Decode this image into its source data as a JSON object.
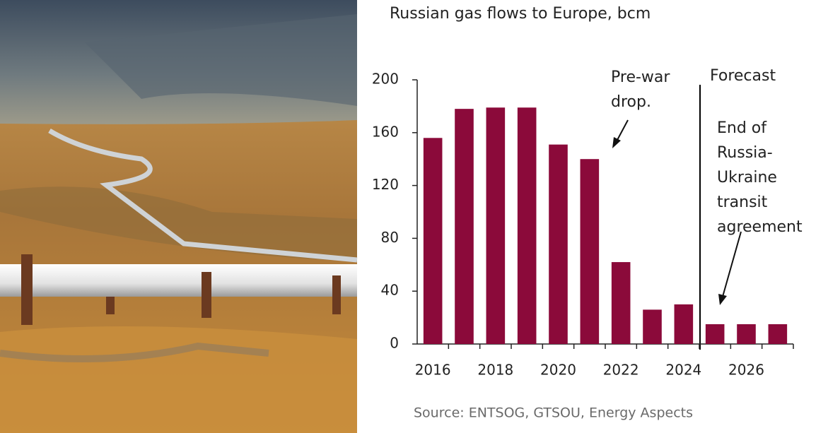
{
  "chart_data": {
    "type": "bar",
    "title": "Russian gas flows to Europe, bcm",
    "categories": [
      "2016",
      null,
      "2018",
      null,
      "2020",
      null,
      "2022",
      null,
      "2024",
      null,
      "2026",
      null
    ],
    "values": [
      156,
      178,
      179,
      179,
      151,
      140,
      62,
      26,
      30,
      15,
      15,
      15
    ],
    "color": "#8b0a3a",
    "ylim": [
      0,
      200
    ],
    "yticks": [
      0,
      40,
      80,
      120,
      160,
      200
    ],
    "annotations": [
      {
        "lines": [
          "Pre-war",
          "drop."
        ]
      },
      {
        "lines": [
          "Forecast"
        ]
      },
      {
        "lines": [
          "End of",
          "Russia-",
          "Ukraine",
          "transit",
          "agreement"
        ]
      }
    ],
    "source": "Source: ENTSOG, GTSOU, Energy Aspects"
  }
}
